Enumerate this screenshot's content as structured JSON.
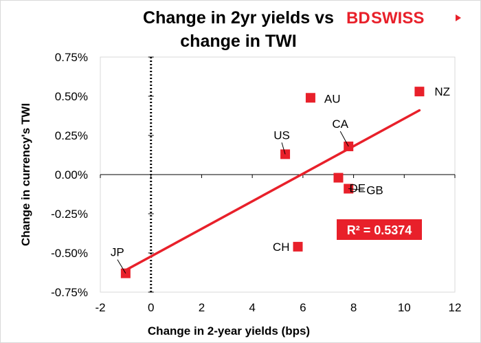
{
  "brand": {
    "name_part1": "BD",
    "name_part2": "SWISS",
    "color": "#e8202a"
  },
  "chart_data": {
    "type": "scatter",
    "title_line1": "Change in 2yr yields vs",
    "title_line2": "change in TWI",
    "xlabel": "Change in 2-year yields (bps)",
    "ylabel": "Change in currency's  TWI",
    "xlim": [
      -2,
      12
    ],
    "ylim": [
      -0.75,
      0.75
    ],
    "x_ticks": [
      -2,
      0,
      2,
      4,
      6,
      8,
      10,
      12
    ],
    "x_tick_labels": [
      "-2",
      "0",
      "2",
      "4",
      "6",
      "8",
      "10",
      "12"
    ],
    "y_ticks": [
      0.75,
      0.5,
      0.25,
      0,
      -0.25,
      -0.5,
      -0.75
    ],
    "y_tick_labels": [
      "0.75%",
      "0.50%",
      "0.25%",
      "0.00%",
      "-0.25%",
      "-0.50%",
      "-0.75%"
    ],
    "points": [
      {
        "label": "NZ",
        "x": 10.6,
        "y": 0.53
      },
      {
        "label": "AU",
        "x": 6.3,
        "y": 0.49
      },
      {
        "label": "US",
        "x": 5.3,
        "y": 0.13
      },
      {
        "label": "CA",
        "x": 7.8,
        "y": 0.18
      },
      {
        "label": "DE",
        "x": 7.4,
        "y": -0.02
      },
      {
        "label": "GB",
        "x": 7.8,
        "y": -0.09
      },
      {
        "label": "CH",
        "x": 5.8,
        "y": -0.46
      },
      {
        "label": "JP",
        "x": -1.0,
        "y": -0.63
      }
    ],
    "trendline": {
      "x": [
        -1.0,
        10.6
      ],
      "y": [
        -0.61,
        0.41
      ],
      "color": "#e8202a"
    },
    "r_squared_label": "R² = 0.5374",
    "marker_color": "#e8202a",
    "grid": false,
    "y_axis_at_x": 0,
    "x_axis_at_y": 0
  }
}
